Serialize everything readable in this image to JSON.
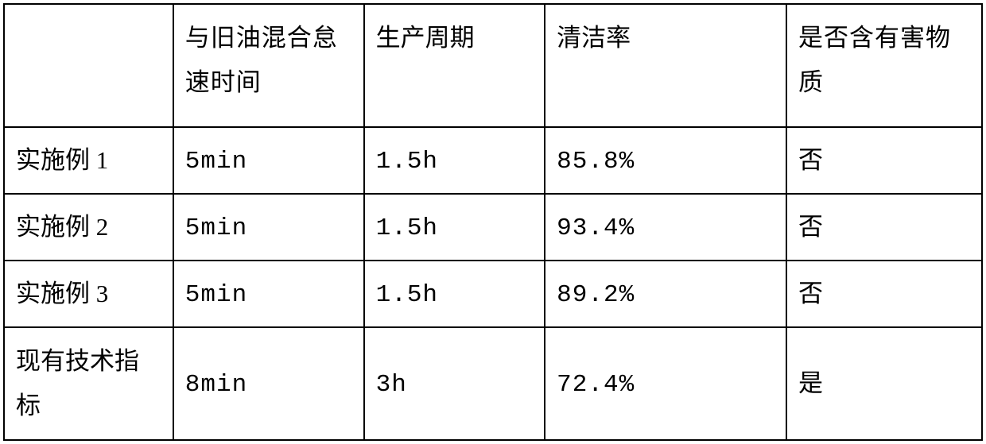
{
  "table": {
    "columns": [
      {
        "label": "",
        "width": "17.3%"
      },
      {
        "label": "与旧油混合怠速时间",
        "width": "19.5%",
        "justify": true
      },
      {
        "label": "生产周期",
        "width": "18.5%"
      },
      {
        "label": "清洁率",
        "width": "24.7%"
      },
      {
        "label": "是否含有害物质",
        "width": "20%",
        "justify": true
      }
    ],
    "rows": [
      {
        "label": "实施例 1",
        "idle_time": "5min",
        "cycle": " 1.5h",
        "clean_rate": "85.8%",
        "harmful": "否"
      },
      {
        "label": "实施例 2",
        "idle_time": "5min",
        "cycle": "1.5h",
        "clean_rate": "93.4%",
        "harmful": "否"
      },
      {
        "label": "实施例 3",
        "idle_time": "5min",
        "cycle": "1.5h",
        "clean_rate": "89.2%",
        "harmful": "否"
      },
      {
        "label": "现有技术指标",
        "idle_time": "8min",
        "cycle": "3h",
        "clean_rate": "72.4%",
        "harmful": "是"
      }
    ],
    "border_color": "#000000",
    "background_color": "#ffffff",
    "text_color": "#000000",
    "font_size": 31,
    "border_width": 2
  }
}
